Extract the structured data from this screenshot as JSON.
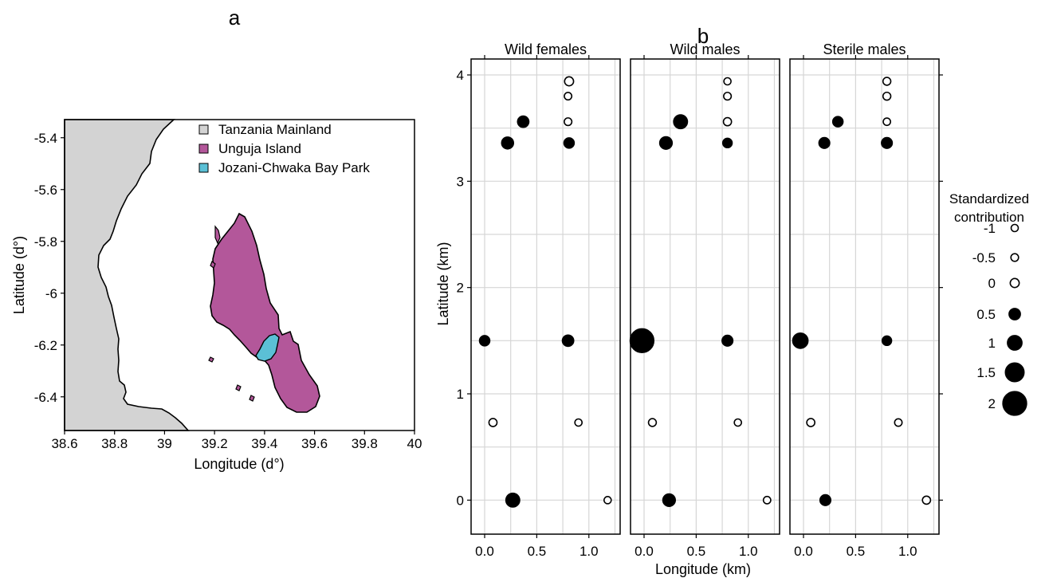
{
  "panel_labels": {
    "a": "a",
    "b": "b"
  },
  "chart_data": [
    {
      "type": "map",
      "xlabel": "Longitude (d°)",
      "ylabel": "Latitude (d°)",
      "xlim": [
        38.6,
        40.0
      ],
      "ylim": [
        -6.53,
        -5.33
      ],
      "xticks": [
        "38.6",
        "38.8",
        "39",
        "39.2",
        "39.4",
        "39.6",
        "39.8",
        "40"
      ],
      "yticks": [
        "-5.4",
        "-5.6",
        "-5.8",
        "-6",
        "-6.2",
        "-6.4"
      ],
      "legend_placement": "top-right",
      "legend": [
        {
          "label": "Tanzania Mainland",
          "color": "#d3d3d3"
        },
        {
          "label": "Unguja Island",
          "color": "#b3579a"
        },
        {
          "label": "Jozani-Chwaka Bay Park",
          "color": "#5bc0d6"
        }
      ]
    },
    {
      "type": "scatter",
      "xlabel": "Longitude (km)",
      "ylabel": "Latitude (km)",
      "xlim": [
        -0.13,
        1.3
      ],
      "ylim": [
        -0.32,
        4.15
      ],
      "xticks": [
        "0.0",
        "0.5",
        "1.0"
      ],
      "yticks": [
        "0",
        "1",
        "2",
        "3",
        "4"
      ],
      "grid": true,
      "size_legend": {
        "title": [
          "Standardized",
          "contribution"
        ],
        "entries": [
          {
            "label": "-1",
            "value": -1
          },
          {
            "label": "-0.5",
            "value": -0.5
          },
          {
            "label": "0",
            "value": 0
          },
          {
            "label": "0.5",
            "value": 0.5
          },
          {
            "label": "1",
            "value": 1
          },
          {
            "label": "1.5",
            "value": 1.5
          },
          {
            "label": "2",
            "value": 2
          }
        ]
      },
      "facets": [
        {
          "title": "Wild females",
          "points": [
            {
              "x": 0.81,
              "y": 3.94,
              "v": 0
            },
            {
              "x": 0.8,
              "y": 3.8,
              "v": -0.6
            },
            {
              "x": 0.8,
              "y": 3.56,
              "v": -1.5
            },
            {
              "x": 0.37,
              "y": 3.56,
              "v": 0.5
            },
            {
              "x": 0.22,
              "y": 3.36,
              "v": 0.6
            },
            {
              "x": 0.81,
              "y": 3.36,
              "v": 0.3
            },
            {
              "x": 0.0,
              "y": 1.5,
              "v": 0.3
            },
            {
              "x": 0.8,
              "y": 1.5,
              "v": 0.5
            },
            {
              "x": 0.08,
              "y": 0.73,
              "v": -0.3
            },
            {
              "x": 0.9,
              "y": 0.73,
              "v": -0.9
            },
            {
              "x": 0.27,
              "y": 0.0,
              "v": 0.9
            },
            {
              "x": 1.18,
              "y": 0.0,
              "v": -1.0
            }
          ]
        },
        {
          "title": "Wild males",
          "points": [
            {
              "x": 0.8,
              "y": 3.94,
              "v": -1.0
            },
            {
              "x": 0.8,
              "y": 3.8,
              "v": -0.5
            },
            {
              "x": 0.8,
              "y": 3.56,
              "v": -0.3
            },
            {
              "x": 0.35,
              "y": 3.56,
              "v": 0.9
            },
            {
              "x": 0.21,
              "y": 3.36,
              "v": 0.7
            },
            {
              "x": 0.8,
              "y": 3.36,
              "v": 0.1
            },
            {
              "x": -0.02,
              "y": 1.5,
              "v": 2.0
            },
            {
              "x": 0.8,
              "y": 1.5,
              "v": 0.4
            },
            {
              "x": 0.08,
              "y": 0.73,
              "v": -0.4
            },
            {
              "x": 0.9,
              "y": 0.73,
              "v": -0.9
            },
            {
              "x": 0.24,
              "y": 0.0,
              "v": 0.7
            },
            {
              "x": 1.18,
              "y": 0.0,
              "v": -0.7
            }
          ]
        },
        {
          "title": "Sterile males",
          "points": [
            {
              "x": 0.8,
              "y": 3.94,
              "v": -0.4
            },
            {
              "x": 0.8,
              "y": 3.8,
              "v": -0.4
            },
            {
              "x": 0.8,
              "y": 3.56,
              "v": -0.7
            },
            {
              "x": 0.33,
              "y": 3.56,
              "v": 0.3
            },
            {
              "x": 0.2,
              "y": 3.36,
              "v": 0.4
            },
            {
              "x": 0.8,
              "y": 3.36,
              "v": 0.4
            },
            {
              "x": -0.03,
              "y": 1.5,
              "v": 1.1
            },
            {
              "x": 0.8,
              "y": 1.5,
              "v": 0.1
            },
            {
              "x": 0.07,
              "y": 0.73,
              "v": -0.3
            },
            {
              "x": 0.91,
              "y": 0.73,
              "v": -0.6
            },
            {
              "x": 0.21,
              "y": 0.0,
              "v": 0.4
            },
            {
              "x": 1.18,
              "y": 0.0,
              "v": -0.3
            }
          ]
        }
      ]
    }
  ]
}
